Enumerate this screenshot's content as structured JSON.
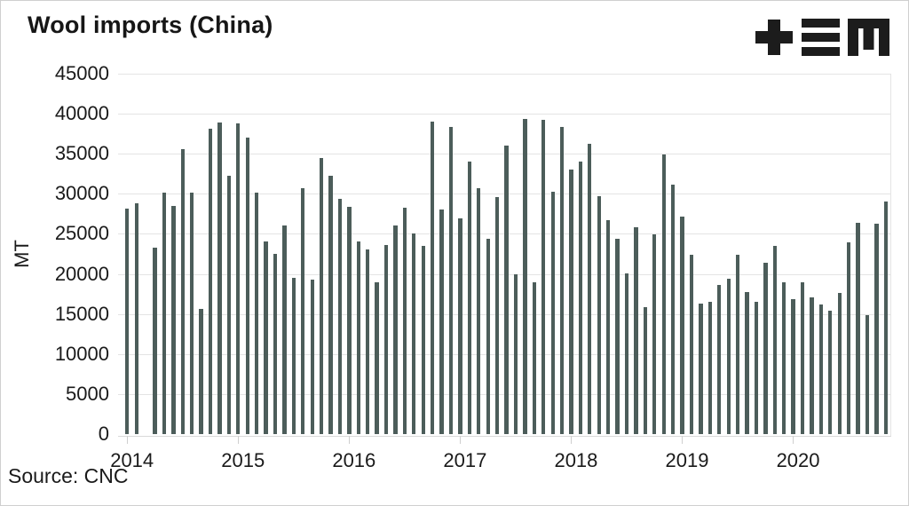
{
  "header": {
    "title": "Wool imports (China)",
    "logo_icon": "tem-logo",
    "logo_color": "#1c1c1c"
  },
  "source_note": "Source: CNC",
  "chart_data": {
    "type": "bar",
    "title": "Wool imports (China)",
    "xlabel": "",
    "ylabel": "MT",
    "unit": "MT",
    "ylim": [
      0,
      45000
    ],
    "ytick_step": 5000,
    "ytick_labels": [
      "0",
      "5000",
      "10000",
      "15000",
      "20000",
      "25000",
      "30000",
      "35000",
      "40000",
      "45000"
    ],
    "grid": "horizontal",
    "legend_position": "none",
    "bar_color": "#4c5d5a",
    "gridline_color": "#e4e4e4",
    "x_year_labels": [
      "2014",
      "2015",
      "2016",
      "2017",
      "2018",
      "2019",
      "2020"
    ],
    "months": [
      {
        "month": "2014-01",
        "value": 28200
      },
      {
        "month": "2014-02",
        "value": 28800
      },
      {
        "month": "2014-03",
        "value": null
      },
      {
        "month": "2014-04",
        "value": 23300
      },
      {
        "month": "2014-05",
        "value": 30200
      },
      {
        "month": "2014-06",
        "value": 28500
      },
      {
        "month": "2014-07",
        "value": 35600
      },
      {
        "month": "2014-08",
        "value": 30100
      },
      {
        "month": "2014-09",
        "value": 15600
      },
      {
        "month": "2014-10",
        "value": 38100
      },
      {
        "month": "2014-11",
        "value": 38900
      },
      {
        "month": "2014-12",
        "value": 32200
      },
      {
        "month": "2015-01",
        "value": 38800
      },
      {
        "month": "2015-02",
        "value": 37000
      },
      {
        "month": "2015-03",
        "value": 30200
      },
      {
        "month": "2015-04",
        "value": 24100
      },
      {
        "month": "2015-05",
        "value": 22500
      },
      {
        "month": "2015-06",
        "value": 26100
      },
      {
        "month": "2015-07",
        "value": 19500
      },
      {
        "month": "2015-08",
        "value": 30700
      },
      {
        "month": "2015-09",
        "value": 19300
      },
      {
        "month": "2015-10",
        "value": 34500
      },
      {
        "month": "2015-11",
        "value": 32200
      },
      {
        "month": "2015-12",
        "value": 29400
      },
      {
        "month": "2016-01",
        "value": 28400
      },
      {
        "month": "2016-02",
        "value": 24000
      },
      {
        "month": "2016-03",
        "value": 23000
      },
      {
        "month": "2016-04",
        "value": 19000
      },
      {
        "month": "2016-05",
        "value": 23600
      },
      {
        "month": "2016-06",
        "value": 26000
      },
      {
        "month": "2016-07",
        "value": 28300
      },
      {
        "month": "2016-08",
        "value": 25000
      },
      {
        "month": "2016-09",
        "value": 23500
      },
      {
        "month": "2016-10",
        "value": 39000
      },
      {
        "month": "2016-11",
        "value": 28000
      },
      {
        "month": "2016-12",
        "value": 38300
      },
      {
        "month": "2017-01",
        "value": 26900
      },
      {
        "month": "2017-02",
        "value": 34000
      },
      {
        "month": "2017-03",
        "value": 30700
      },
      {
        "month": "2017-04",
        "value": 24400
      },
      {
        "month": "2017-05",
        "value": 29600
      },
      {
        "month": "2017-06",
        "value": 36000
      },
      {
        "month": "2017-07",
        "value": 20000
      },
      {
        "month": "2017-08",
        "value": 39400
      },
      {
        "month": "2017-09",
        "value": 18900
      },
      {
        "month": "2017-10",
        "value": 39200
      },
      {
        "month": "2017-11",
        "value": 30300
      },
      {
        "month": "2017-12",
        "value": 38300
      },
      {
        "month": "2018-01",
        "value": 33000
      },
      {
        "month": "2018-02",
        "value": 34000
      },
      {
        "month": "2018-03",
        "value": 36200
      },
      {
        "month": "2018-04",
        "value": 29700
      },
      {
        "month": "2018-05",
        "value": 26700
      },
      {
        "month": "2018-06",
        "value": 24400
      },
      {
        "month": "2018-07",
        "value": 20100
      },
      {
        "month": "2018-08",
        "value": 25800
      },
      {
        "month": "2018-09",
        "value": 15800
      },
      {
        "month": "2018-10",
        "value": 24900
      },
      {
        "month": "2018-11",
        "value": 34900
      },
      {
        "month": "2018-12",
        "value": 31200
      },
      {
        "month": "2019-01",
        "value": 27200
      },
      {
        "month": "2019-02",
        "value": 22400
      },
      {
        "month": "2019-03",
        "value": 16300
      },
      {
        "month": "2019-04",
        "value": 16500
      },
      {
        "month": "2019-05",
        "value": 18600
      },
      {
        "month": "2019-06",
        "value": 19400
      },
      {
        "month": "2019-07",
        "value": 22400
      },
      {
        "month": "2019-08",
        "value": 17700
      },
      {
        "month": "2019-09",
        "value": 16500
      },
      {
        "month": "2019-10",
        "value": 21400
      },
      {
        "month": "2019-11",
        "value": 23500
      },
      {
        "month": "2019-12",
        "value": 19000
      },
      {
        "month": "2020-01",
        "value": 16800
      },
      {
        "month": "2020-02",
        "value": 19000
      },
      {
        "month": "2020-03",
        "value": 17100
      },
      {
        "month": "2020-04",
        "value": 16200
      },
      {
        "month": "2020-05",
        "value": 15400
      },
      {
        "month": "2020-06",
        "value": 17600
      },
      {
        "month": "2020-07",
        "value": 23900
      },
      {
        "month": "2020-08",
        "value": 26400
      },
      {
        "month": "2020-09",
        "value": 14900
      },
      {
        "month": "2020-10",
        "value": 26300
      },
      {
        "month": "2020-11",
        "value": 29000
      }
    ]
  }
}
